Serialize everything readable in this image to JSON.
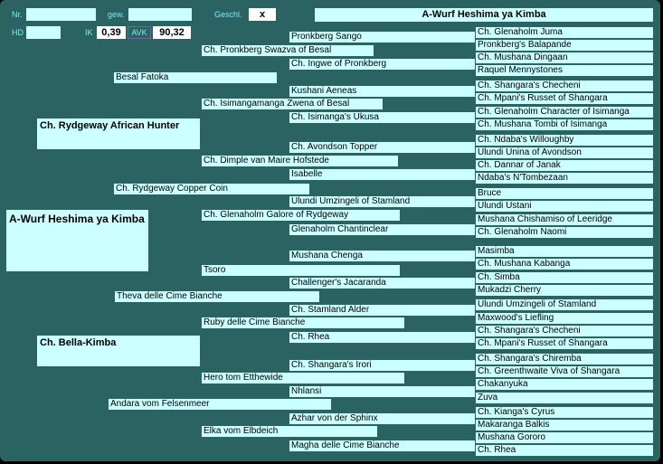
{
  "header": {
    "nr_label": "Nr.",
    "gew_label": "gew.",
    "geschl_label": "Geschl.",
    "geschl_value": "x",
    "title": "A-Wurf Heshima ya Kimba",
    "hd_label": "HD",
    "ik_label": "IK",
    "ik_value": "0,39",
    "avk_label": "AVK",
    "avk_value": "90,32"
  },
  "subject": {
    "name": "A-Wurf Heshima ya Kimba"
  },
  "parents": {
    "sire": "Ch. Rydgeway African Hunter",
    "dam": "Ch. Bella-Kimba"
  },
  "grandparents": [
    "Besal Fatoka",
    "Ch. Rydgeway Copper Coin",
    "Theva delle Cime Bianche",
    "Andara vom Felsenmeer"
  ],
  "gen3": [
    "Ch. Pronkberg Swazva of Besal",
    "Ch. Isimangamanga Zwena of Besal",
    "Ch. Dimple van Maire Hofstede",
    "Ch. Glenaholm Galore of Rydgeway",
    "Tsoro",
    "Ruby delle Cime Bianche",
    "Hero tom Etthewide",
    "Elka vom Elbdeich"
  ],
  "gen4": [
    "Pronkberg Sango",
    "Ch. Ingwe of Pronkberg",
    "Kushani Aeneas",
    "Ch. Isimanga's Ukusa",
    "Ch. Avondson Topper",
    "Isabelle",
    "Ulundi Umzingeli of Stamland",
    "Glenaholm Chantinclear",
    "Mushana Chenga",
    "Challenger's Jacaranda",
    "Ch. Stamland Alder",
    "Ch.  Rhea",
    "Ch. Shangara's Irori",
    "Nhlansi",
    "Azhar von der Sphinx",
    "Magha delle Cime Bianche"
  ],
  "gen5": [
    "Ch.  Glenaholm Juma",
    "Pronkberg's Balapande",
    "Ch. Mushana Dingaan",
    "Raquel Mennystones",
    "Ch. Shangara's Checheni",
    "Ch. Mpani's Russet of Shangara",
    "Ch. Glenaholm Character of Isimanga",
    "Ch. Mushana Tombi of Isimanga",
    "Ch. Ndaba's Willoughby",
    "Ulundi Unina of Avondson",
    "Ch. Dannar of Janak",
    "Ndaba's N'Tombezaan",
    "Bruce",
    "Ulundi Ustani",
    "Mushana Chishamiso of Leeridge",
    "Ch. Glenaholm Naomi",
    "Masimba",
    "Ch. Mushana Kabanga",
    "Ch. Simba",
    "Mukadzi Cherry",
    "Ulundi Umzingeli of Stamland",
    "Maxwood's Liefling",
    "Ch. Shangara's Checheni",
    "Ch. Mpani's Russet of Shangara",
    "Ch. Shangara's Chiremba",
    "Ch. Greenthwaite Viva of Shangara",
    "Chakanyuka",
    "Zuva",
    "Ch. Kianga's Cyrus",
    "Makaranga Balkis",
    "Mushana Gororo",
    "Ch.  Rhea"
  ]
}
